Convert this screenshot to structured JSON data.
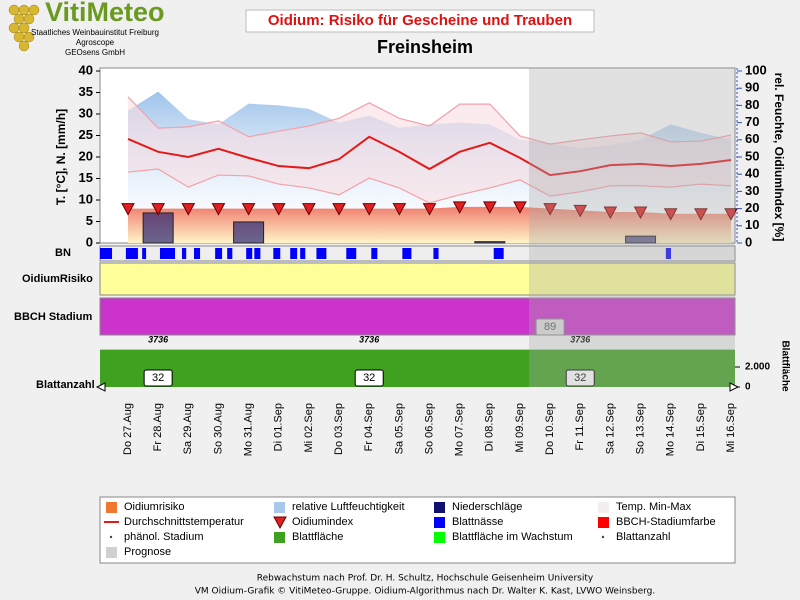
{
  "header": {
    "logo": "VitiMeteo",
    "institution": [
      "Staatliches Weinbauinstitut Freiburg",
      "Agroscope",
      "GEOsens GmbH"
    ],
    "title": "Oidium: Risiko für Gescheine und Trauben"
  },
  "chart_data": {
    "type": "line",
    "title": "Freinsheim",
    "ylabel": "T. [°C], N. [mm/h]",
    "y2label": "rel. Feuchte, OidiumIndex [%]",
    "categories": [
      "Do 27.Aug",
      "Fr 28.Aug",
      "Sa 29.Aug",
      "So 30.Aug",
      "Mo 31.Aug",
      "Di 01.Sep",
      "Mi 02.Sep",
      "Do 03.Sep",
      "Fr 04.Sep",
      "Sa 05.Sep",
      "So 06.Sep",
      "Mo 07.Sep",
      "Di 08.Sep",
      "Mi 09.Sep",
      "Do 10.Sep",
      "Fr 11.Sep",
      "Sa 12.Sep",
      "So 13.Sep",
      "Mo 14.Sep",
      "Di 15.Sep",
      "Mi 16.Sep"
    ],
    "ylim": [
      0,
      40
    ],
    "yticks": [
      0,
      5,
      10,
      15,
      20,
      25,
      30,
      35,
      40
    ],
    "y2lim": [
      0,
      100
    ],
    "y2ticks": [
      0,
      10,
      20,
      30,
      40,
      50,
      60,
      70,
      80,
      90,
      100
    ],
    "forecast_from": 14,
    "series": [
      {
        "color": "#e41a1a",
        "values": [
          24.2,
          21.2,
          20,
          21.9,
          19.8,
          17.9,
          17.4,
          19.5,
          24.7,
          21.2,
          17.2,
          21.2,
          23.3,
          19.8,
          15.8,
          16.7,
          18.1,
          18.4,
          17.9,
          18.4,
          19.3
        ]
      },
      {
        "color": "#f4a0a8",
        "low": [
          16.5,
          17.2,
          13,
          15.8,
          15.6,
          13.7,
          12.8,
          11.2,
          15.1,
          12.8,
          9.3,
          11.2,
          12.8,
          14.7,
          10.9,
          11.9,
          13.3,
          13.3,
          13,
          13.7,
          13.3
        ],
        "high": [
          34,
          26.7,
          27,
          28.4,
          24.7,
          26,
          27.2,
          29,
          32.6,
          29,
          27.2,
          32.3,
          32.3,
          24.9,
          23,
          24,
          24.9,
          25.6,
          23.5,
          23.7,
          25.1
        ]
      },
      {
        "color": "#a8c8ec",
        "axis": "y2",
        "values": [
          77,
          88,
          72,
          69,
          81,
          80,
          78,
          70,
          74,
          67,
          69,
          70,
          69,
          60,
          58,
          55,
          57,
          60,
          69,
          64,
          60
        ]
      },
      {
        "color": "#e02020",
        "axis": "y2",
        "values": [
          20,
          20,
          20,
          20,
          20,
          20,
          20,
          20,
          20,
          20,
          20,
          21,
          21,
          21,
          20,
          19,
          18,
          18,
          17,
          17,
          17
        ]
      },
      {
        "color": "#1a1a6e",
        "values": [
          0,
          7,
          0,
          0,
          4.9,
          0,
          0,
          0,
          0,
          0,
          0,
          0,
          0.3,
          0,
          0,
          0,
          0,
          1.6,
          0,
          0,
          0
        ]
      }
    ],
    "legend": [
      {
        "name": "Oidiumrisiko",
        "symbol": "square",
        "color": "#f07830"
      },
      {
        "name": "relative Luftfeuchtigkeit",
        "symbol": "square",
        "color": "#a8c8ec"
      },
      {
        "name": "Niederschläge",
        "symbol": "square",
        "color": "#101070"
      },
      {
        "name": "Temp. Min-Max",
        "symbol": "square",
        "color": "#f4eef0"
      },
      {
        "name": "Durchschnittstemperatur",
        "symbol": "line",
        "color": "#e41a1a"
      },
      {
        "name": "Oidiumindex",
        "symbol": "triangle",
        "color": "#e02020"
      },
      {
        "name": "Blattnässe",
        "symbol": "square",
        "color": "#0000ff"
      },
      {
        "name": "BBCH-Stadiumfarbe",
        "symbol": "square",
        "color": "#ff0000"
      },
      {
        "name": "phänol. Stadium",
        "symbol": "dot",
        "color": "#444444"
      },
      {
        "name": "Blattfläche",
        "symbol": "square",
        "color": "#40a020"
      },
      {
        "name": "Blattfläche im Wachstum",
        "symbol": "square",
        "color": "#00ff00"
      },
      {
        "name": "Blattanzahl",
        "symbol": "dot",
        "color": "#444444"
      },
      {
        "name": "Prognose",
        "symbol": "square",
        "color": "#d0d0d0"
      }
    ]
  },
  "rows": {
    "bn": {
      "label": "BN",
      "color": "#0000ff",
      "segments": [
        [
          -0.93,
          -0.53
        ],
        [
          -0.07,
          0.33
        ],
        [
          0.47,
          0.6
        ],
        [
          1.06,
          1.56
        ],
        [
          1.79,
          1.93
        ],
        [
          2.19,
          2.39
        ],
        [
          2.89,
          3.12
        ],
        [
          3.29,
          3.46
        ],
        [
          3.92,
          4.12
        ],
        [
          4.19,
          4.39
        ],
        [
          4.82,
          5.05
        ],
        [
          5.38,
          5.61
        ],
        [
          5.71,
          5.88
        ],
        [
          6.25,
          6.58
        ],
        [
          7.24,
          7.57
        ],
        [
          8.07,
          8.27
        ],
        [
          9.1,
          9.4
        ],
        [
          10.13,
          10.3
        ],
        [
          12.13,
          12.46
        ],
        [
          17.84,
          18.01
        ]
      ]
    },
    "risk": {
      "label": "OidiumRisiko",
      "color": "#ffff99"
    },
    "bbch": {
      "label": "BBCH Stadium",
      "color": "#cc33cc",
      "value": 89
    },
    "leaf": {
      "label": "Blattanzahl",
      "y2label": "Blattfläche",
      "color": "#40a020",
      "area": [
        3736,
        3736,
        3736,
        3736,
        3736,
        3736,
        3736,
        3736,
        3736,
        3736,
        3736,
        3736,
        3736,
        3736,
        3736,
        3736,
        3736,
        3736,
        3736,
        3736,
        3736
      ],
      "count": [
        32,
        32,
        32,
        32,
        32,
        32,
        32,
        32,
        32,
        32,
        32,
        32,
        32,
        32,
        32,
        32,
        32,
        32,
        32,
        32,
        32
      ],
      "ylim": [
        0,
        4100
      ],
      "yticks": [
        0,
        {
          "value": 2000,
          "label": "2.000"
        }
      ]
    }
  },
  "footer": [
    "Rebwachstum nach Prof. Dr. H. Schultz, Hochschule Geisenheim University",
    "VM Oidium-Grafik © VitiMeteo-Gruppe. Oidium-Algorithmus nach Dr. Walter K. Kast, LVWO Weinsberg."
  ]
}
